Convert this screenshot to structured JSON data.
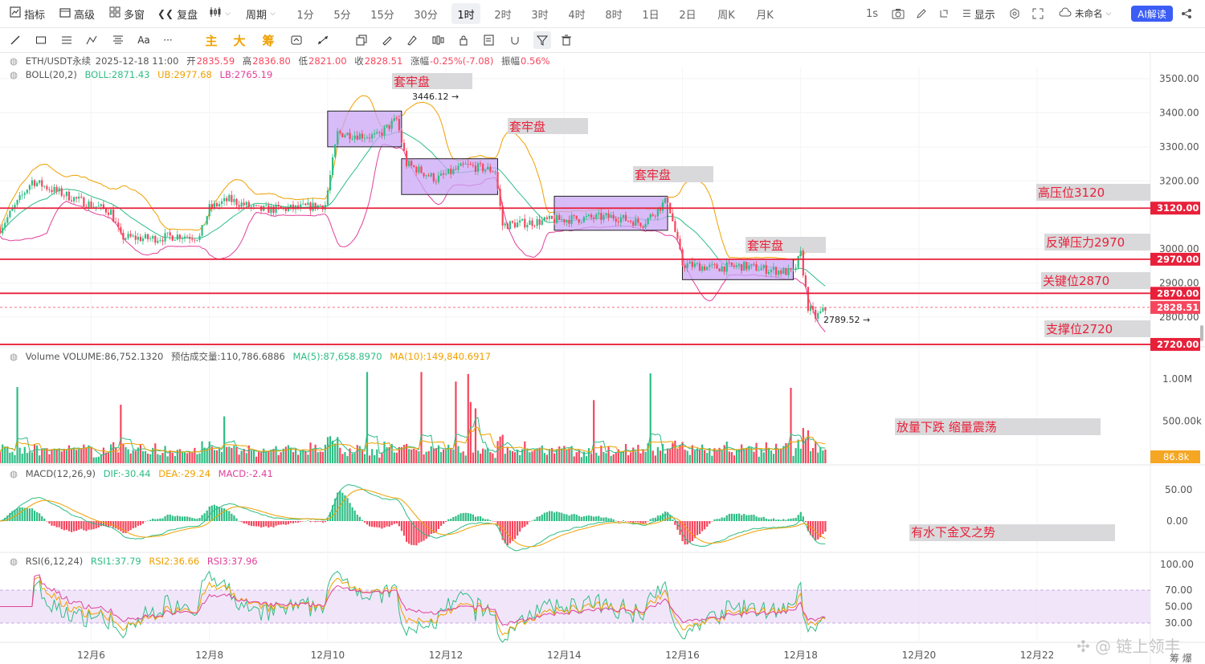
{
  "toolbar": {
    "indicators": "指标",
    "advanced": "高级",
    "multi_window": "多窗",
    "replay": "复盘",
    "period": "周期",
    "timeframes": [
      "1分",
      "5分",
      "15分",
      "30分",
      "1时",
      "2时",
      "3时",
      "4时",
      "8时",
      "1日",
      "2日",
      "周K",
      "月K"
    ],
    "active_timeframe": "1时",
    "interval_1s": "1s",
    "display": "显示",
    "layout_name": "未命名",
    "ai_button": "AI解读"
  },
  "drawing_tools": {
    "aa_label": "Aa",
    "more_label": "···",
    "main_label": "主",
    "big_label": "大",
    "chip_label": "筹"
  },
  "legend": {
    "symbol": "ETH/USDT永续",
    "time": "2025-12-18 11:00",
    "open_label": "开",
    "open": "2835.59",
    "high_label": "高",
    "high": "2836.80",
    "low_label": "低",
    "low": "2821.00",
    "close_label": "收",
    "close": "2828.51",
    "change_label": "涨幅",
    "change": "-0.25%(-7.08)",
    "amplitude_label": "振幅",
    "amplitude": "0.56%"
  },
  "boll_legend": {
    "name": "BOLL(20,2)",
    "boll": "BOLL:2871.43",
    "ub": "UB:2977.68",
    "lb": "LB:2765.19"
  },
  "volume_legend": {
    "volume": "Volume VOLUME:86,752.1320",
    "forecast": "预估成交量:110,786.6886",
    "ma5": "MA(5):87,658.8970",
    "ma10": "MA(10):149,840.6917"
  },
  "macd_legend": {
    "name": "MACD(12,26,9)",
    "dif": "DIF:-30.44",
    "dea": "DEA:-29.24",
    "macd": "MACD:-2.41"
  },
  "rsi_legend": {
    "name": "RSI(6,12,24)",
    "rsi1": "RSI1:37.79",
    "rsi2": "RSI2:36.66",
    "rsi3": "RSI3:37.96"
  },
  "colors": {
    "up": "#2ebd85",
    "down": "#f6465d",
    "boll_mid": "#2ebd85",
    "boll_up": "#f0a000",
    "boll_low": "#e0409a",
    "box_fill": "#c9a6f5",
    "hline": "#e8203a",
    "label_bg": "#d9d9db",
    "annot_text": "#e8203a"
  },
  "chart_data": {
    "type": "candlestick",
    "symbol": "ETH/USDT永续",
    "interval": "1h",
    "x_ticks": [
      "12月6",
      "12月8",
      "12月10",
      "12月12",
      "12月14",
      "12月16",
      "12月18",
      "12月20",
      "12月22"
    ],
    "price_ticks": [
      "3500.00",
      "3400.00",
      "3300.00",
      "3200.00",
      "3000.00",
      "2900.00",
      "2800.00"
    ],
    "ylim": [
      2690,
      3540
    ],
    "horizontal_lines": [
      {
        "price": 3120,
        "axis_label": "3120.00",
        "annotation": "高压位3120"
      },
      {
        "price": 2970,
        "axis_label": "2970.00",
        "annotation": "反弹压力2970"
      },
      {
        "price": 2870,
        "axis_label": "2870.00",
        "annotation": "关键位2870"
      },
      {
        "price": 2720,
        "axis_label": "2720.00",
        "annotation": "支撑位2720"
      }
    ],
    "current_price": "2828.51",
    "consolidation_boxes": [
      {
        "label": "套牢盘",
        "date_start": "12月10 00:00",
        "date_end": "12月11 06:00",
        "price_high": 3405,
        "price_low": 3300
      },
      {
        "label": "套牢盘",
        "date_start": "12月11 06:00",
        "date_end": "12月12 21:00",
        "price_high": 3265,
        "price_low": 3160
      },
      {
        "label": "套牢盘",
        "date_start": "12月13 20:00",
        "date_end": "12月15 18:00",
        "price_high": 3155,
        "price_low": 3055
      },
      {
        "label": "套牢盘",
        "date_start": "12月16 00:00",
        "date_end": "12月17 21:00",
        "price_high": 2970,
        "price_low": 2910
      }
    ],
    "price_markers": [
      {
        "label": "3446.12",
        "kind": "high"
      },
      {
        "label": "2789.52",
        "kind": "low"
      }
    ],
    "close_path": [
      {
        "t": "12月4 11:00",
        "c": 3060
      },
      {
        "t": "12月5 00:00",
        "c": 3200
      },
      {
        "t": "12月5 08:00",
        "c": 3175
      },
      {
        "t": "12月5 20:00",
        "c": 3140
      },
      {
        "t": "12月6 08:00",
        "c": 3110
      },
      {
        "t": "12月6 12:00",
        "c": 3035
      },
      {
        "t": "12月7 00:00",
        "c": 3030
      },
      {
        "t": "12月7 12:00",
        "c": 3040
      },
      {
        "t": "12月7 20:00",
        "c": 3035
      },
      {
        "t": "12月8 00:00",
        "c": 3120
      },
      {
        "t": "12月8 08:00",
        "c": 3145
      },
      {
        "t": "12月8 20:00",
        "c": 3115
      },
      {
        "t": "12月9 12:00",
        "c": 3120
      },
      {
        "t": "12月9 23:00",
        "c": 3130
      },
      {
        "t": "12月10 04:00",
        "c": 3340
      },
      {
        "t": "12月10 20:00",
        "c": 3330
      },
      {
        "t": "12月11 04:00",
        "c": 3380
      },
      {
        "t": "12月11 08:00",
        "c": 3250
      },
      {
        "t": "12月11 20:00",
        "c": 3205
      },
      {
        "t": "12月12 08:00",
        "c": 3245
      },
      {
        "t": "12月12 20:00",
        "c": 3230
      },
      {
        "t": "12月12 23:00",
        "c": 3070
      },
      {
        "t": "12月13 20:00",
        "c": 3085
      },
      {
        "t": "12月14 20:00",
        "c": 3095
      },
      {
        "t": "12月15 08:00",
        "c": 3075
      },
      {
        "t": "12月15 18:00",
        "c": 3145
      },
      {
        "t": "12月16 00:00",
        "c": 2955
      },
      {
        "t": "12月16 12:00",
        "c": 2945
      },
      {
        "t": "12月17 00:00",
        "c": 2950
      },
      {
        "t": "12月17 21:00",
        "c": 2930
      },
      {
        "t": "12月18 00:00",
        "c": 2985
      },
      {
        "t": "12月18 03:00",
        "c": 2830
      },
      {
        "t": "12月18 06:00",
        "c": 2800
      },
      {
        "t": "12月18 11:00",
        "c": 2828.51
      }
    ],
    "volume_ticks": [
      "1.00M",
      "500.00k"
    ],
    "current_volume": "86.8k",
    "macd_ticks": [
      "50.00",
      "0.00"
    ],
    "rsi_ticks": [
      "100.00",
      "70.00",
      "50.00",
      "30.00"
    ],
    "annotations": [
      "放量下跌 缩量震荡",
      "有水下金叉之势"
    ]
  },
  "watermark": "链上领丰",
  "watermark_sub": "筹  爆"
}
